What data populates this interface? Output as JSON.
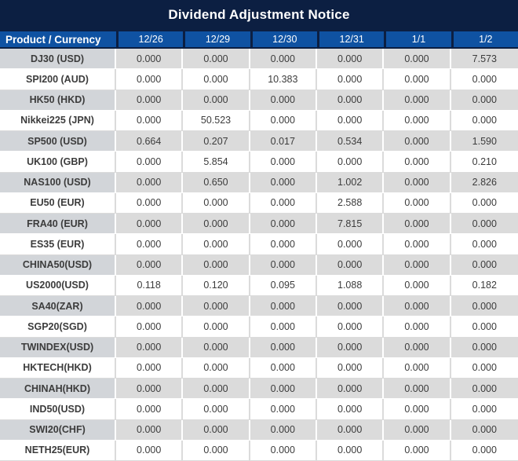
{
  "colors": {
    "title_bar_bg": "#0c1f42",
    "header_bg": "#0f52a2",
    "header_text": "#ffffff",
    "stripe_gray": "#dbdbdb",
    "stripe_gray_product": "#d2d5d9",
    "stripe_white": "#ffffff",
    "value_text": "#3c3c3c",
    "red_value": "#f8121b"
  },
  "chart_data": {
    "type": "table",
    "title": "Dividend Adjustment Notice",
    "columns": [
      "Product / Currency",
      "12/26",
      "12/29",
      "12/30",
      "12/31",
      "1/1",
      "1/2"
    ],
    "rows": [
      {
        "product": "DJ30 (USD)",
        "values": [
          "0.000",
          "0.000",
          "0.000",
          "0.000",
          "0.000",
          "7.573"
        ],
        "red_indices": [
          5
        ]
      },
      {
        "product": "SPI200 (AUD)",
        "values": [
          "0.000",
          "0.000",
          "10.383",
          "0.000",
          "0.000",
          "0.000"
        ],
        "red_indices": [
          2
        ]
      },
      {
        "product": "HK50 (HKD)",
        "values": [
          "0.000",
          "0.000",
          "0.000",
          "0.000",
          "0.000",
          "0.000"
        ],
        "red_indices": []
      },
      {
        "product": "Nikkei225 (JPN)",
        "values": [
          "0.000",
          "50.523",
          "0.000",
          "0.000",
          "0.000",
          "0.000"
        ],
        "red_indices": [
          1
        ]
      },
      {
        "product": "SP500 (USD)",
        "values": [
          "0.664",
          "0.207",
          "0.017",
          "0.534",
          "0.000",
          "1.590"
        ],
        "red_indices": [
          0,
          1,
          2,
          3,
          5
        ]
      },
      {
        "product": "UK100 (GBP)",
        "values": [
          "0.000",
          "5.854",
          "0.000",
          "0.000",
          "0.000",
          "0.210"
        ],
        "red_indices": [
          1,
          5
        ]
      },
      {
        "product": "NAS100 (USD)",
        "values": [
          "0.000",
          "0.650",
          "0.000",
          "1.002",
          "0.000",
          "2.826"
        ],
        "red_indices": [
          1,
          3,
          5
        ]
      },
      {
        "product": "EU50 (EUR)",
        "values": [
          "0.000",
          "0.000",
          "0.000",
          "2.588",
          "0.000",
          "0.000"
        ],
        "red_indices": [
          3
        ]
      },
      {
        "product": "FRA40 (EUR)",
        "values": [
          "0.000",
          "0.000",
          "0.000",
          "7.815",
          "0.000",
          "0.000"
        ],
        "red_indices": [
          3
        ]
      },
      {
        "product": "ES35 (EUR)",
        "values": [
          "0.000",
          "0.000",
          "0.000",
          "0.000",
          "0.000",
          "0.000"
        ],
        "red_indices": []
      },
      {
        "product": "CHINA50(USD)",
        "values": [
          "0.000",
          "0.000",
          "0.000",
          "0.000",
          "0.000",
          "0.000"
        ],
        "red_indices": []
      },
      {
        "product": "US2000(USD)",
        "values": [
          "0.118",
          "0.120",
          "0.095",
          "1.088",
          "0.000",
          "0.182"
        ],
        "red_indices": [
          0,
          1,
          2,
          3,
          5
        ]
      },
      {
        "product": "SA40(ZAR)",
        "values": [
          "0.000",
          "0.000",
          "0.000",
          "0.000",
          "0.000",
          "0.000"
        ],
        "red_indices": []
      },
      {
        "product": "SGP20(SGD)",
        "values": [
          "0.000",
          "0.000",
          "0.000",
          "0.000",
          "0.000",
          "0.000"
        ],
        "red_indices": []
      },
      {
        "product": "TWINDEX(USD)",
        "values": [
          "0.000",
          "0.000",
          "0.000",
          "0.000",
          "0.000",
          "0.000"
        ],
        "red_indices": []
      },
      {
        "product": "HKTECH(HKD)",
        "values": [
          "0.000",
          "0.000",
          "0.000",
          "0.000",
          "0.000",
          "0.000"
        ],
        "red_indices": []
      },
      {
        "product": "CHINAH(HKD)",
        "values": [
          "0.000",
          "0.000",
          "0.000",
          "0.000",
          "0.000",
          "0.000"
        ],
        "red_indices": []
      },
      {
        "product": "IND50(USD)",
        "values": [
          "0.000",
          "0.000",
          "0.000",
          "0.000",
          "0.000",
          "0.000"
        ],
        "red_indices": []
      },
      {
        "product": "SWI20(CHF)",
        "values": [
          "0.000",
          "0.000",
          "0.000",
          "0.000",
          "0.000",
          "0.000"
        ],
        "red_indices": []
      },
      {
        "product": "NETH25(EUR)",
        "values": [
          "0.000",
          "0.000",
          "0.000",
          "0.000",
          "0.000",
          "0.000"
        ],
        "red_indices": []
      }
    ],
    "layout_hints": {
      "striping": "rows alternate gray/white starting with gray",
      "red_indices_meaning": "column indexes (0-based within values) rendered in red"
    }
  }
}
